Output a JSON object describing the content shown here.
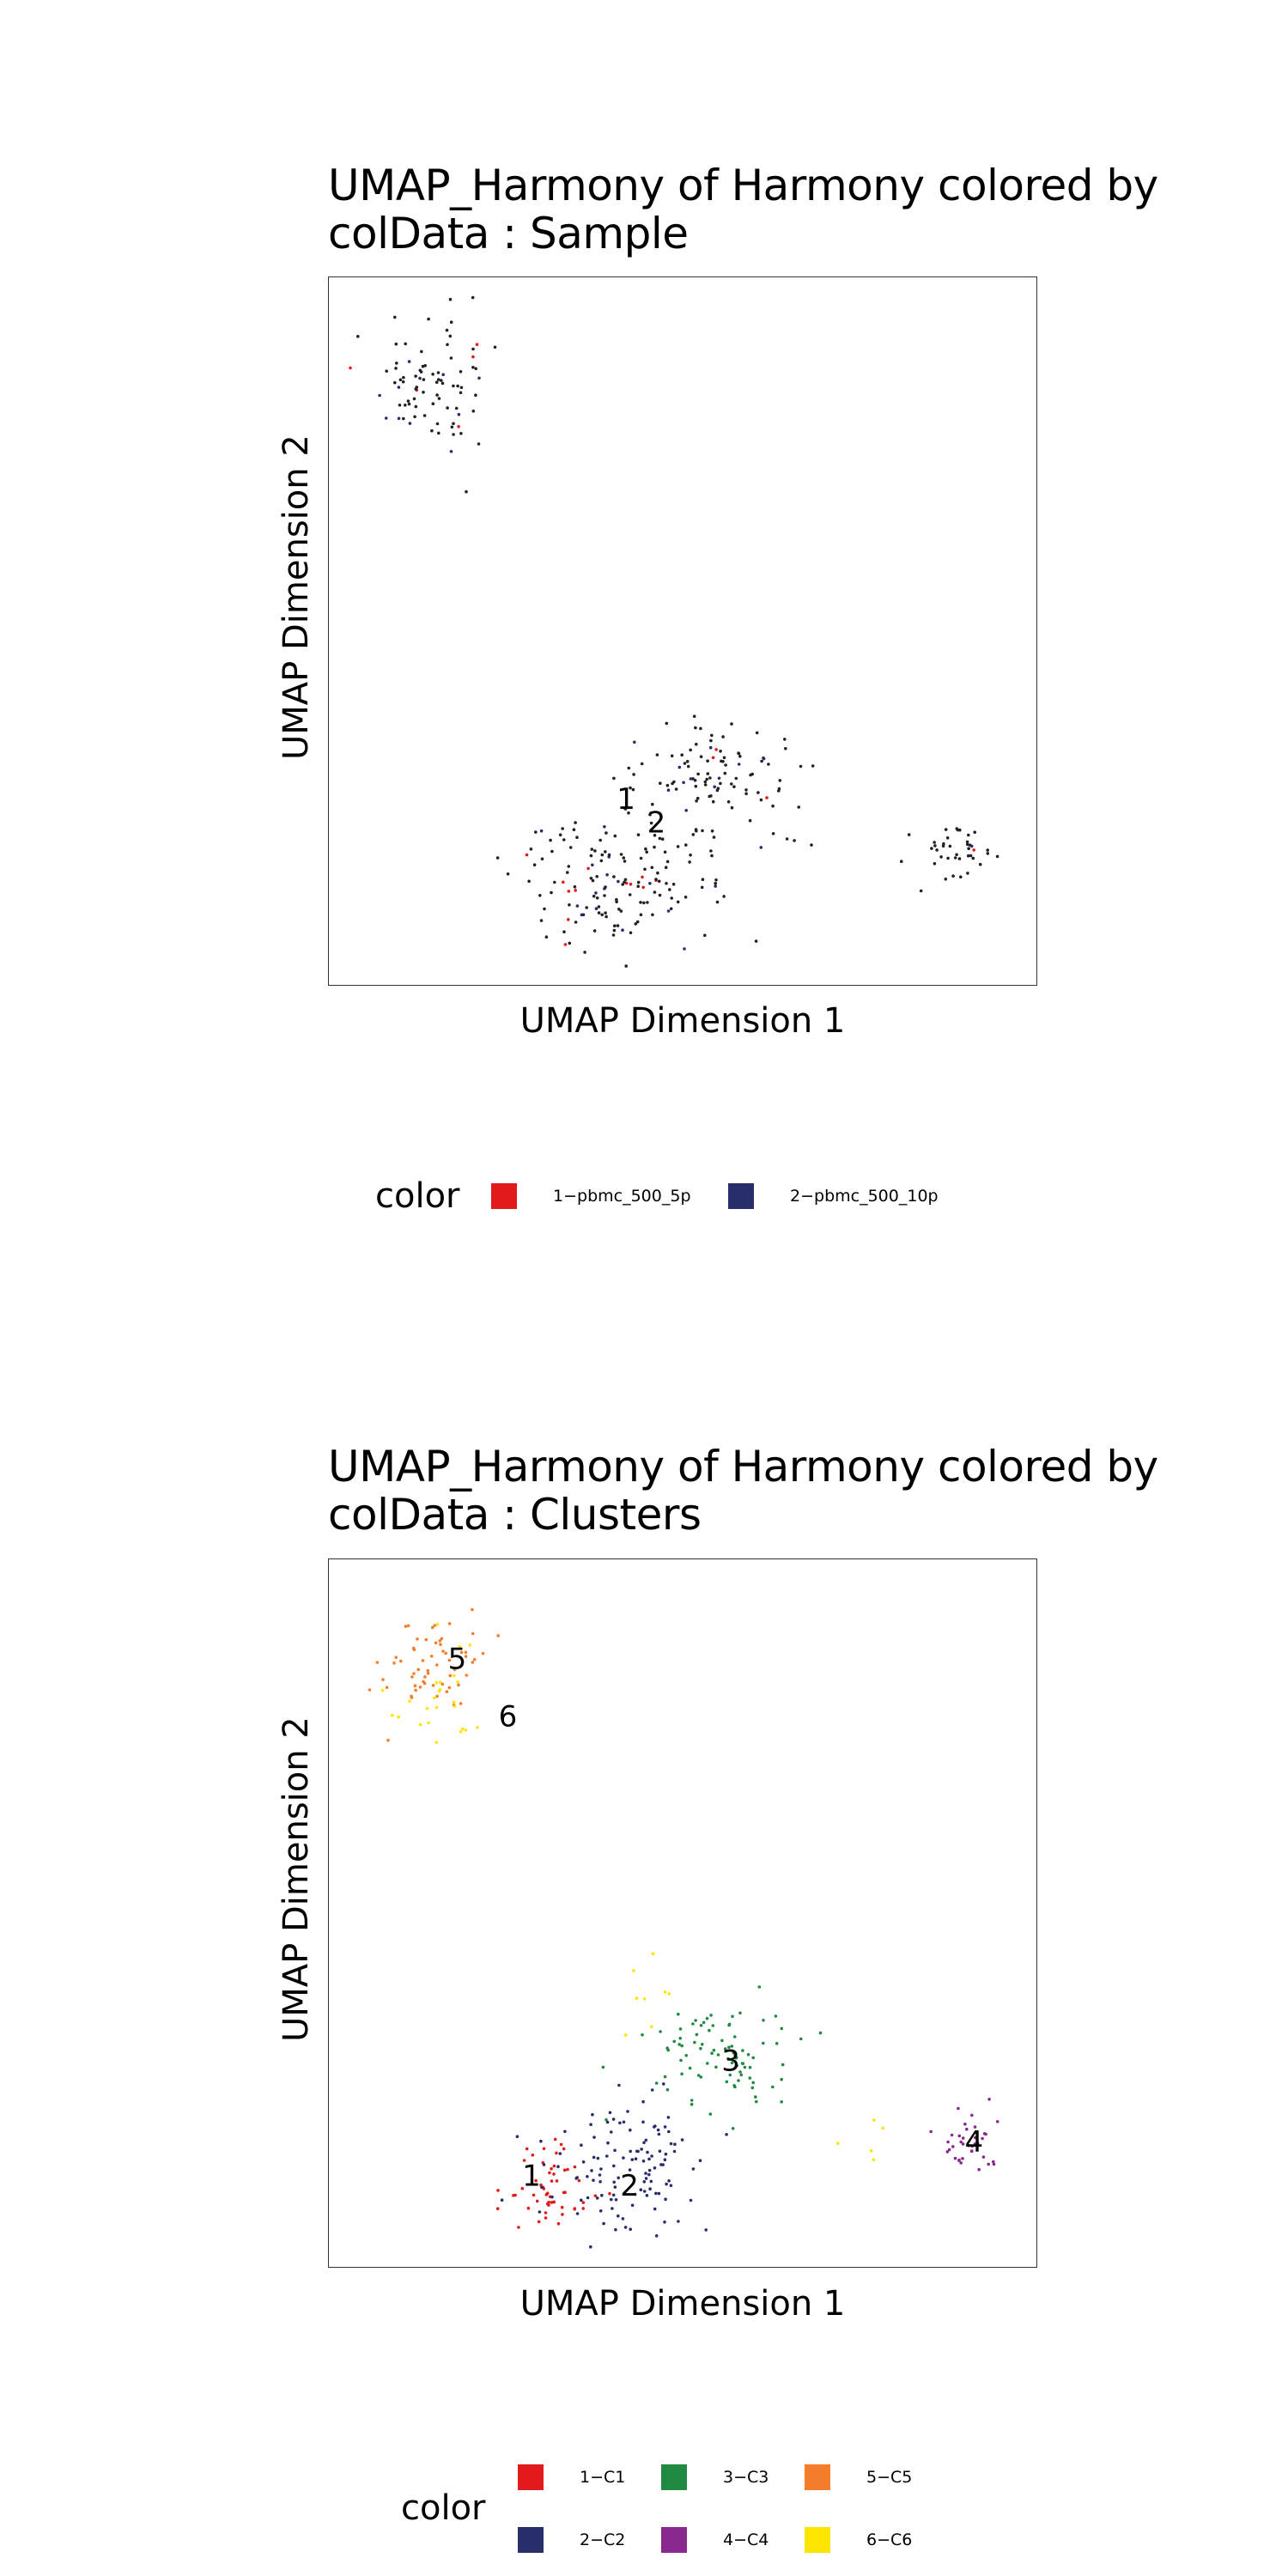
{
  "chart_data": [
    {
      "type": "scatter",
      "title_line1": "UMAP_Harmony of Harmony  colored by",
      "title_line2": "colData :  Sample",
      "xlabel": "UMAP Dimension 1",
      "ylabel": "UMAP Dimension 2",
      "xlim": [
        -7,
        14
      ],
      "ylim": [
        -8,
        13
      ],
      "legend_title": "color",
      "legend_position": "bottom",
      "series": [
        {
          "name": "1−pbmc_500_5p",
          "color": "#E31A1C"
        },
        {
          "name": "2−pbmc_500_10p",
          "color": "#272E6A"
        }
      ],
      "point_color": "#222222",
      "centroid_labels": [
        {
          "text": "1",
          "x": 1.8,
          "y": -2.5
        },
        {
          "text": "2",
          "x": 2.7,
          "y": -3.2
        }
      ],
      "clusters": [
        {
          "cx": -3.9,
          "cy": 9.8,
          "sx": 1.0,
          "sy": 1.2,
          "n": 85
        },
        {
          "cx": 1.6,
          "cy": -4.9,
          "sx": 1.8,
          "sy": 1.3,
          "n": 150
        },
        {
          "cx": 4.4,
          "cy": -1.9,
          "sx": 1.6,
          "sy": 1.2,
          "n": 110
        },
        {
          "cx": 11.7,
          "cy": -4.1,
          "sx": 0.7,
          "sy": 0.6,
          "n": 40
        }
      ]
    },
    {
      "type": "scatter",
      "title_line1": "UMAP_Harmony of Harmony  colored by",
      "title_line2": "colData :  Clusters",
      "xlabel": "UMAP Dimension 1",
      "ylabel": "UMAP Dimension 2",
      "xlim": [
        -7,
        14
      ],
      "ylim": [
        -8,
        13
      ],
      "legend_title": "color",
      "legend_position": "bottom",
      "series": [
        {
          "name": "1−C1",
          "color": "#E31A1C"
        },
        {
          "name": "2−C2",
          "color": "#272E6A"
        },
        {
          "name": "3−C3",
          "color": "#208A42"
        },
        {
          "name": "4−C4",
          "color": "#89288F"
        },
        {
          "name": "5−C5",
          "color": "#F47D2B"
        },
        {
          "name": "6−C6",
          "color": "#FEE500"
        }
      ],
      "centroid_labels": [
        {
          "text": "5",
          "x": -3.2,
          "y": 10.0
        },
        {
          "text": "6",
          "x": -1.7,
          "y": 8.3
        },
        {
          "text": "3",
          "x": 4.9,
          "y": -1.9
        },
        {
          "text": "4",
          "x": 12.1,
          "y": -4.3
        },
        {
          "text": "1",
          "x": -1.0,
          "y": -5.3
        },
        {
          "text": "2",
          "x": 1.9,
          "y": -5.6
        }
      ],
      "clusters": [
        {
          "series": 4,
          "cx": -3.9,
          "cy": 9.9,
          "sx": 1.0,
          "sy": 1.0,
          "n": 60
        },
        {
          "series": 5,
          "cx": -3.8,
          "cy": 9.0,
          "sx": 1.0,
          "sy": 1.3,
          "n": 25
        },
        {
          "series": 2,
          "cx": 4.6,
          "cy": -1.7,
          "sx": 1.4,
          "sy": 1.1,
          "n": 90
        },
        {
          "series": 3,
          "cx": 11.9,
          "cy": -4.2,
          "sx": 0.7,
          "sy": 0.6,
          "n": 40
        },
        {
          "series": 0,
          "cx": -0.5,
          "cy": -5.6,
          "sx": 0.9,
          "sy": 1.0,
          "n": 55
        },
        {
          "series": 1,
          "cx": 1.8,
          "cy": -5.0,
          "sx": 1.6,
          "sy": 1.3,
          "n": 120
        },
        {
          "series": 5,
          "cx": 2.5,
          "cy": 0.4,
          "sx": 0.6,
          "sy": 0.8,
          "n": 8
        },
        {
          "series": 5,
          "cx": 8.8,
          "cy": -4.2,
          "sx": 0.6,
          "sy": 0.6,
          "n": 5
        }
      ]
    }
  ]
}
